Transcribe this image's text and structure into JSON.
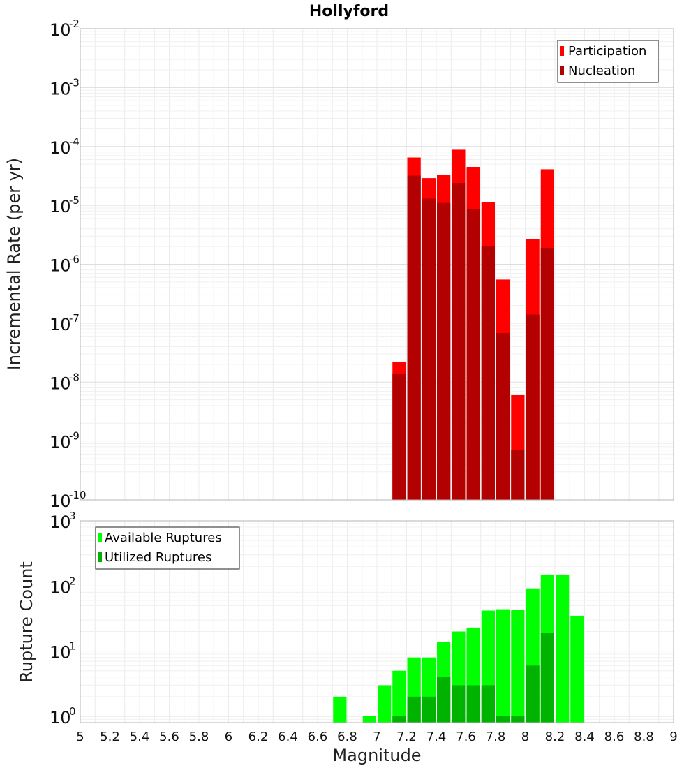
{
  "chart_data": [
    {
      "type": "bar",
      "title": "Hollyford",
      "ylabel": "Incremental Rate (per yr)",
      "xlim": [
        5,
        9
      ],
      "ylim": [
        1e-10,
        0.01
      ],
      "yscale": "log",
      "grid": true,
      "legend_position": "top-right",
      "y_ticks": [
        {
          "base": "10",
          "exp": "-10",
          "value": 1e-10
        },
        {
          "base": "10",
          "exp": "-9",
          "value": 1e-09
        },
        {
          "base": "10",
          "exp": "-8",
          "value": 1e-08
        },
        {
          "base": "10",
          "exp": "-7",
          "value": 1e-07
        },
        {
          "base": "10",
          "exp": "-6",
          "value": 1e-06
        },
        {
          "base": "10",
          "exp": "-5",
          "value": 1e-05
        },
        {
          "base": "10",
          "exp": "-4",
          "value": 0.0001
        },
        {
          "base": "10",
          "exp": "-3",
          "value": 0.001
        },
        {
          "base": "10",
          "exp": "-2",
          "value": 0.01
        }
      ],
      "series": [
        {
          "name": "Participation",
          "color": "#ff0000",
          "x": [
            7.15,
            7.25,
            7.35,
            7.45,
            7.55,
            7.65,
            7.75,
            7.85,
            7.95,
            8.05,
            8.15
          ],
          "values": [
            2.2e-08,
            6.5e-05,
            2.9e-05,
            3.3e-05,
            8.8e-05,
            4.5e-05,
            1.15e-05,
            5.5e-07,
            6e-09,
            2.7e-06,
            4.1e-05
          ]
        },
        {
          "name": "Nucleation",
          "color": "#b30000",
          "x": [
            7.15,
            7.25,
            7.35,
            7.45,
            7.55,
            7.65,
            7.75,
            7.85,
            7.95,
            8.05,
            8.15
          ],
          "values": [
            1.4e-08,
            3.2e-05,
            1.3e-05,
            1.1e-05,
            2.4e-05,
            8.7e-06,
            2e-06,
            6.8e-08,
            7e-10,
            1.4e-07,
            1.9e-06
          ]
        }
      ]
    },
    {
      "type": "bar",
      "xlabel": "Magnitude",
      "ylabel": "Rupture Count",
      "xlim": [
        5,
        9
      ],
      "ylim": [
        0.8,
        1000
      ],
      "yscale": "log",
      "grid": true,
      "legend_position": "top-left",
      "x_tick_labels": [
        "5",
        "5.2",
        "5.4",
        "5.6",
        "5.8",
        "6",
        "6.2",
        "6.4",
        "6.6",
        "6.8",
        "7",
        "7.2",
        "7.4",
        "7.6",
        "7.8",
        "8",
        "8.2",
        "8.4",
        "8.6",
        "8.8",
        "9"
      ],
      "y_ticks": [
        {
          "base": "10",
          "exp": "0",
          "value": 1
        },
        {
          "base": "10",
          "exp": "1",
          "value": 10
        },
        {
          "base": "10",
          "exp": "2",
          "value": 100
        },
        {
          "base": "10",
          "exp": "3",
          "value": 1000
        }
      ],
      "series": [
        {
          "name": "Available Ruptures",
          "color": "#00ff00",
          "x": [
            6.75,
            6.95,
            7.05,
            7.15,
            7.25,
            7.35,
            7.45,
            7.55,
            7.65,
            7.75,
            7.85,
            7.95,
            8.05,
            8.15,
            8.25,
            8.35
          ],
          "values": [
            2,
            1,
            3,
            5,
            8,
            8,
            14,
            20,
            23,
            42,
            44,
            43,
            92,
            150,
            150,
            35
          ]
        },
        {
          "name": "Utilized Ruptures",
          "color": "#00b300",
          "x": [
            7.15,
            7.25,
            7.35,
            7.45,
            7.55,
            7.65,
            7.75,
            7.85,
            7.95,
            8.05,
            8.15
          ],
          "values": [
            1,
            2,
            2,
            4,
            3,
            3,
            3,
            1,
            1,
            6,
            19
          ]
        }
      ]
    }
  ]
}
